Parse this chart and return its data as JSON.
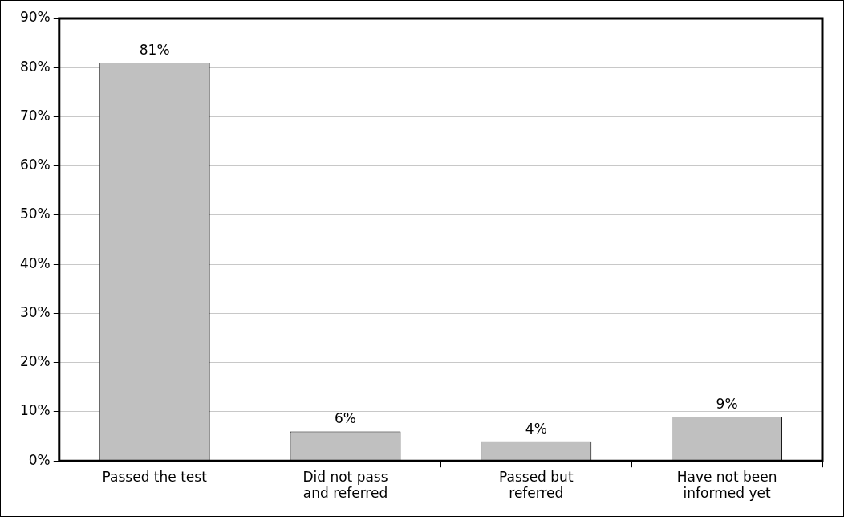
{
  "chart_data": {
    "type": "bar",
    "categories": [
      "Passed the test",
      "Did not pass and referred",
      "Passed but referred",
      "Have not been informed yet"
    ],
    "values": [
      81,
      6,
      4,
      9
    ],
    "value_labels": [
      "81%",
      "6%",
      "4%",
      "9%"
    ],
    "color": "#c0c0c0",
    "ylim": [
      0,
      90
    ],
    "yticks": [
      {
        "value": 0,
        "label": "0%"
      },
      {
        "value": 10,
        "label": "10%"
      },
      {
        "value": 20,
        "label": "20%"
      },
      {
        "value": 30,
        "label": "30%"
      },
      {
        "value": 40,
        "label": "40%"
      },
      {
        "value": 50,
        "label": "50%"
      },
      {
        "value": 60,
        "label": "60%"
      },
      {
        "value": 70,
        "label": "70%"
      },
      {
        "value": 80,
        "label": "80%"
      },
      {
        "value": 90,
        "label": "90%"
      }
    ],
    "grid": "y",
    "legend": false
  }
}
